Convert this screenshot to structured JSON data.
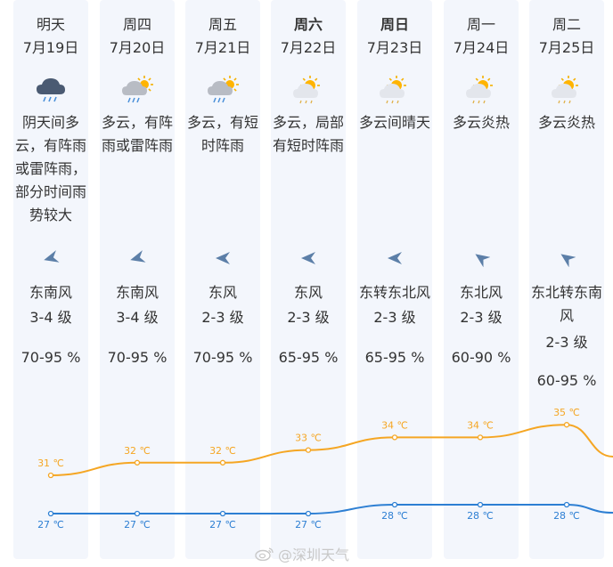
{
  "days": [
    {
      "day": "明天",
      "date": "7月19日",
      "bold": false,
      "icon": "thunderstorm-rain-icon",
      "desc": "阴天间多云，有阵雨或雷阵雨，部分时间雨势较大",
      "wind_dir": "东南风",
      "wind_level": "3-4 级",
      "humidity": "70-95 %",
      "wind_icon": "wind-arrow-icon"
    },
    {
      "day": "周四",
      "date": "7月20日",
      "bold": false,
      "icon": "cloudy-rain-sun-icon",
      "desc": "多云，有阵雨或雷阵雨",
      "wind_dir": "东南风",
      "wind_level": "3-4 级",
      "humidity": "70-95 %",
      "wind_icon": "wind-arrow-icon"
    },
    {
      "day": "周五",
      "date": "7月21日",
      "bold": false,
      "icon": "cloudy-rain-sun-icon",
      "desc": "多云，有短时阵雨",
      "wind_dir": "东风",
      "wind_level": "2-3 级",
      "humidity": "70-95 %",
      "wind_icon": "wind-arrow-icon"
    },
    {
      "day": "周六",
      "date": "7月22日",
      "bold": true,
      "icon": "sun-cloud-icon",
      "desc": "多云，局部有短时阵雨",
      "wind_dir": "东风",
      "wind_level": "2-3 级",
      "humidity": "65-95 %",
      "wind_icon": "wind-arrow-icon"
    },
    {
      "day": "周日",
      "date": "7月23日",
      "bold": true,
      "icon": "sun-cloud-icon",
      "desc": "多云间晴天",
      "wind_dir": "东转东北风",
      "wind_level": "2-3 级",
      "humidity": "65-95 %",
      "wind_icon": "wind-arrow-icon"
    },
    {
      "day": "周一",
      "date": "7月24日",
      "bold": false,
      "icon": "sun-cloud-icon",
      "desc": "多云炎热",
      "wind_dir": "东北风",
      "wind_level": "2-3 级",
      "humidity": "60-90 %",
      "wind_icon": "wind-arrow-icon"
    },
    {
      "day": "周二",
      "date": "7月25日",
      "bold": false,
      "icon": "sun-cloud-icon",
      "desc": "多云炎热",
      "wind_dir": "东北转东南风",
      "wind_level": "2-3 级",
      "humidity": "60-95 %",
      "wind_icon": "wind-arrow-icon"
    }
  ],
  "chart_data": {
    "type": "line",
    "x": [
      "7月19日",
      "7月20日",
      "7月21日",
      "7月22日",
      "7月23日",
      "7月24日",
      "7月25日"
    ],
    "series": [
      {
        "values": [
          31,
          32,
          32,
          33,
          34,
          34,
          35
        ],
        "labels": [
          "31 ℃",
          "32 ℃",
          "32 ℃",
          "33 ℃",
          "34 ℃",
          "34 ℃",
          "35 ℃"
        ],
        "color": "#f5a623"
      },
      {
        "values": [
          27,
          27,
          27,
          27,
          28,
          28,
          28
        ],
        "labels": [
          "27 ℃",
          "27 ℃",
          "27 ℃",
          "27 ℃",
          "28 ℃",
          "28 ℃",
          "28 ℃"
        ],
        "color": "#2d7fd3"
      }
    ]
  },
  "watermark": {
    "text": "@深圳天气"
  },
  "colors": {
    "high": "#f5a623",
    "low": "#2d7fd3",
    "column_bg": "#f3f6fc"
  }
}
